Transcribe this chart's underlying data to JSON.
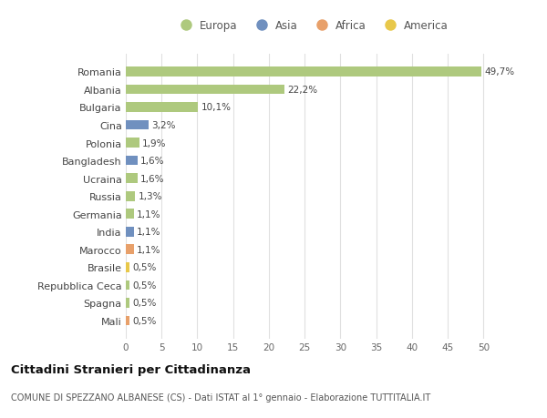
{
  "countries": [
    "Romania",
    "Albania",
    "Bulgaria",
    "Cina",
    "Polonia",
    "Bangladesh",
    "Ucraina",
    "Russia",
    "Germania",
    "India",
    "Marocco",
    "Brasile",
    "Repubblica Ceca",
    "Spagna",
    "Mali"
  ],
  "values": [
    49.7,
    22.2,
    10.1,
    3.2,
    1.9,
    1.6,
    1.6,
    1.3,
    1.1,
    1.1,
    1.1,
    0.5,
    0.5,
    0.5,
    0.5
  ],
  "labels": [
    "49,7%",
    "22,2%",
    "10,1%",
    "3,2%",
    "1,9%",
    "1,6%",
    "1,6%",
    "1,3%",
    "1,1%",
    "1,1%",
    "1,1%",
    "0,5%",
    "0,5%",
    "0,5%",
    "0,5%"
  ],
  "colors": [
    "#aec97e",
    "#aec97e",
    "#aec97e",
    "#7090bf",
    "#aec97e",
    "#7090bf",
    "#aec97e",
    "#aec97e",
    "#aec97e",
    "#7090bf",
    "#e8a06a",
    "#e8c84a",
    "#aec97e",
    "#aec97e",
    "#e8a06a"
  ],
  "legend": [
    {
      "label": "Europa",
      "color": "#aec97e"
    },
    {
      "label": "Asia",
      "color": "#7090bf"
    },
    {
      "label": "Africa",
      "color": "#e8a06a"
    },
    {
      "label": "America",
      "color": "#e8c84a"
    }
  ],
  "title": "Cittadini Stranieri per Cittadinanza",
  "subtitle": "COMUNE DI SPEZZANO ALBANESE (CS) - Dati ISTAT al 1° gennaio - Elaborazione TUTTITALIA.IT",
  "xlim": [
    0,
    52
  ],
  "xticks": [
    0,
    5,
    10,
    15,
    20,
    25,
    30,
    35,
    40,
    45,
    50
  ],
  "bg_color": "#ffffff",
  "grid_color": "#e0e0e0"
}
